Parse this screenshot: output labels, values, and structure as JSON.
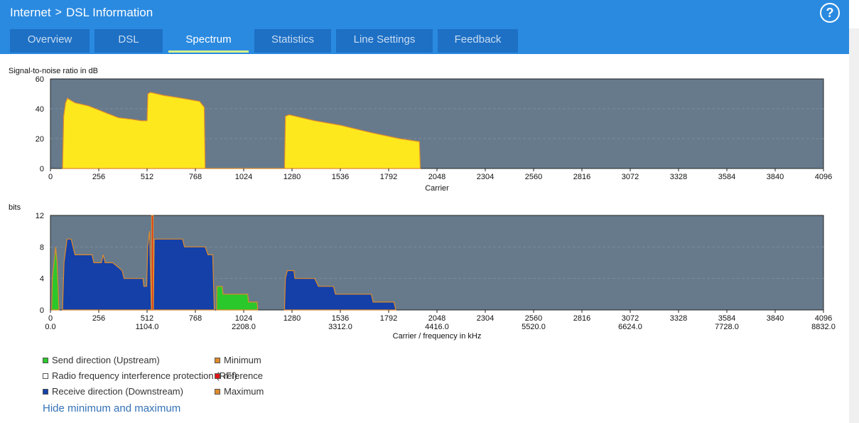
{
  "breadcrumb": {
    "root": "Internet",
    "separator": ">",
    "page": "DSL Information"
  },
  "help_label": "?",
  "tabs": [
    {
      "label": "Overview",
      "active": false
    },
    {
      "label": "DSL",
      "active": false
    },
    {
      "label": "Spectrum",
      "active": true
    },
    {
      "label": "Statistics",
      "active": false
    },
    {
      "label": "Line Settings",
      "active": false
    },
    {
      "label": "Feedback",
      "active": false
    }
  ],
  "colors": {
    "header": "#2a8ae0",
    "tab": "#1d70c4",
    "plot_bg": "#667a8c",
    "snr_fill": "#fde81e",
    "downstream": "#1440a8",
    "upstream": "#2bc82b",
    "rfi": "#e01818",
    "outline": "#e08a2a"
  },
  "chart_data": [
    {
      "type": "area",
      "title": "Signal-to-noise ratio in dB",
      "xlabel": "Carrier",
      "ylabel": "",
      "xlim": [
        0,
        4096
      ],
      "ylim": [
        0,
        60
      ],
      "x_ticks": [
        0,
        256,
        512,
        768,
        1024,
        1280,
        1536,
        1792,
        2048,
        2304,
        2560,
        2816,
        3072,
        3328,
        3584,
        3840,
        4096
      ],
      "y_ticks": [
        0,
        20,
        40,
        60
      ],
      "grid": true,
      "series": [
        {
          "color": "#fde81e",
          "points": [
            [
              64,
              0
            ],
            [
              70,
              35
            ],
            [
              80,
              44
            ],
            [
              90,
              47
            ],
            [
              130,
              44
            ],
            [
              200,
              42
            ],
            [
              260,
              39
            ],
            [
              300,
              37
            ],
            [
              360,
              34
            ],
            [
              430,
              33
            ],
            [
              480,
              32
            ],
            [
              512,
              32
            ],
            [
              516,
              50
            ],
            [
              530,
              51
            ],
            [
              600,
              49
            ],
            [
              700,
              47
            ],
            [
              790,
              45
            ],
            [
              815,
              41
            ],
            [
              820,
              0
            ],
            [
              1240,
              0
            ],
            [
              1245,
              35
            ],
            [
              1265,
              36
            ],
            [
              1400,
              32
            ],
            [
              1536,
              29
            ],
            [
              1700,
              24
            ],
            [
              1850,
              20
            ],
            [
              1955,
              18
            ],
            [
              1960,
              0
            ]
          ]
        }
      ]
    },
    {
      "type": "area",
      "title": "bits",
      "xlabel": "Carrier / frequency in kHz",
      "ylabel": "",
      "xlim": [
        0,
        4096
      ],
      "ylim": [
        0,
        12
      ],
      "x_ticks": [
        0,
        256,
        512,
        768,
        1024,
        1280,
        1536,
        1792,
        2048,
        2304,
        2560,
        2816,
        3072,
        3328,
        3584,
        3840,
        4096
      ],
      "x_ticks_khz": [
        "0.0",
        "1104.0",
        "2208.0",
        "3312.0",
        "4416.0",
        "5520.0",
        "6624.0",
        "7728.0",
        "8832.0"
      ],
      "y_ticks": [
        0,
        4,
        8,
        12
      ],
      "grid": true,
      "series": [
        {
          "name": "Send direction (Upstream)",
          "color": "#2bc82b",
          "points": [
            [
              6,
              0
            ],
            [
              10,
              4
            ],
            [
              28,
              8
            ],
            [
              35,
              6
            ],
            [
              45,
              0
            ]
          ]
        },
        {
          "name": "Send direction (Upstream)",
          "color": "#2bc82b",
          "points": [
            [
              880,
              0
            ],
            [
              882,
              3
            ],
            [
              910,
              3
            ],
            [
              915,
              2
            ],
            [
              1045,
              2
            ],
            [
              1050,
              1
            ],
            [
              1095,
              1
            ],
            [
              1098,
              0
            ]
          ]
        },
        {
          "name": "Receive direction (Downstream)",
          "color": "#1440a8",
          "points": [
            [
              64,
              0
            ],
            [
              72,
              6
            ],
            [
              88,
              9
            ],
            [
              110,
              9
            ],
            [
              130,
              7
            ],
            [
              220,
              7
            ],
            [
              230,
              6
            ],
            [
              270,
              6
            ],
            [
              280,
              7
            ],
            [
              290,
              6
            ],
            [
              330,
              6
            ],
            [
              380,
              5
            ],
            [
              390,
              4
            ],
            [
              490,
              4
            ],
            [
              495,
              3
            ],
            [
              510,
              3
            ],
            [
              515,
              8
            ],
            [
              525,
              10
            ],
            [
              535,
              0
            ],
            [
              545,
              0
            ],
            [
              550,
              9
            ],
            [
              700,
              9
            ],
            [
              710,
              8
            ],
            [
              820,
              8
            ],
            [
              835,
              7
            ],
            [
              860,
              7
            ],
            [
              868,
              0
            ]
          ]
        },
        {
          "name": "Receive direction (Downstream)",
          "color": "#1440a8",
          "points": [
            [
              1240,
              0
            ],
            [
              1245,
              4
            ],
            [
              1255,
              5
            ],
            [
              1290,
              5
            ],
            [
              1295,
              4
            ],
            [
              1400,
              4
            ],
            [
              1420,
              3
            ],
            [
              1500,
              3
            ],
            [
              1510,
              2
            ],
            [
              1700,
              2
            ],
            [
              1710,
              1
            ],
            [
              1820,
              1
            ],
            [
              1830,
              0
            ]
          ]
        },
        {
          "name": "Radio frequency interference protection (RFI) reference",
          "color": "#e01818",
          "points": [
            [
              536,
              0
            ],
            [
              536,
              12
            ],
            [
              544,
              12
            ],
            [
              544,
              0
            ]
          ]
        }
      ]
    }
  ],
  "legend": [
    {
      "label": "Send direction (Upstream)",
      "color": "#2bc82b"
    },
    {
      "label": "Minimum",
      "color": "#e08a2a"
    },
    {
      "label": "Radio frequency interference protection (RFI) reference",
      "color": "#e01818"
    },
    {
      "label": "Receive direction (Downstream)",
      "color": "#1440a8"
    },
    {
      "label": "Maximum",
      "color": "#e08a2a"
    }
  ],
  "rfi_short_label": "Radio frequency interference protection (RFI)",
  "rfi_ref_label": "reference",
  "toggle_link": "Hide minimum and maximum"
}
